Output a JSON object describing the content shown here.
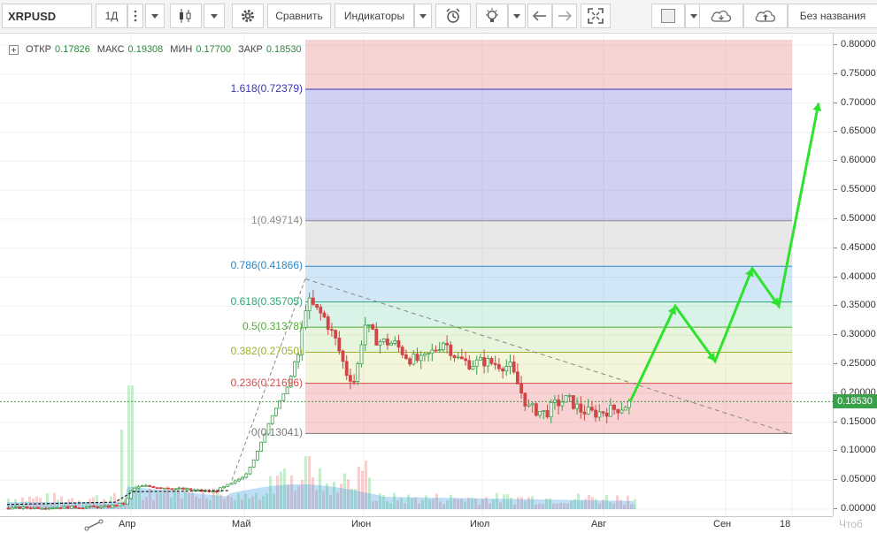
{
  "toolbar": {
    "symbol": "XRPUSD",
    "interval": "1Д",
    "compare_label": "Сравнить",
    "indicators_label": "Индикаторы",
    "layout_name": "Без названия"
  },
  "ohlc": {
    "open_label": "ОТКР",
    "open": "0.17826",
    "high_label": "МАКС",
    "high": "0.19308",
    "low_label": "МИН",
    "low": "0.17700",
    "close_label": "ЗАКР",
    "close": "0.18530"
  },
  "price_axis": {
    "ticks": [
      "0.80000",
      "0.75000",
      "0.70000",
      "0.65000",
      "0.60000",
      "0.55000",
      "0.50000",
      "0.45000",
      "0.40000",
      "0.35000",
      "0.30000",
      "0.25000",
      "0.20000",
      "0.15000",
      "0.10000",
      "0.05000",
      "0.00000"
    ],
    "current_price": "0.18530"
  },
  "time_axis": {
    "ticks": [
      "Апр",
      "Май",
      "Июн",
      "Июл",
      "Авг",
      "Сен",
      "18"
    ]
  },
  "fib_levels": [
    {
      "label": "1.618(0.72379)",
      "price": 0.72379,
      "color": "#3a35b5"
    },
    {
      "label": "1(0.49714)",
      "price": 0.49714,
      "color": "#8c8c8c"
    },
    {
      "label": "0.786(0.41866)",
      "price": 0.41866,
      "color": "#2e86c9"
    },
    {
      "label": "0.618(0.35705)",
      "price": 0.35705,
      "color": "#2aa775"
    },
    {
      "label": "0.5(0.31378)",
      "price": 0.31378,
      "color": "#4caf2f"
    },
    {
      "label": "0.382(0.27050)",
      "price": 0.2705,
      "color": "#9fae2d"
    },
    {
      "label": "0.236(0.21696)",
      "price": 0.21696,
      "color": "#d24c4c"
    },
    {
      "label": "0(0.13041)",
      "price": 0.13041,
      "color": "#777777"
    }
  ],
  "corner_text": "Чтоб"
}
